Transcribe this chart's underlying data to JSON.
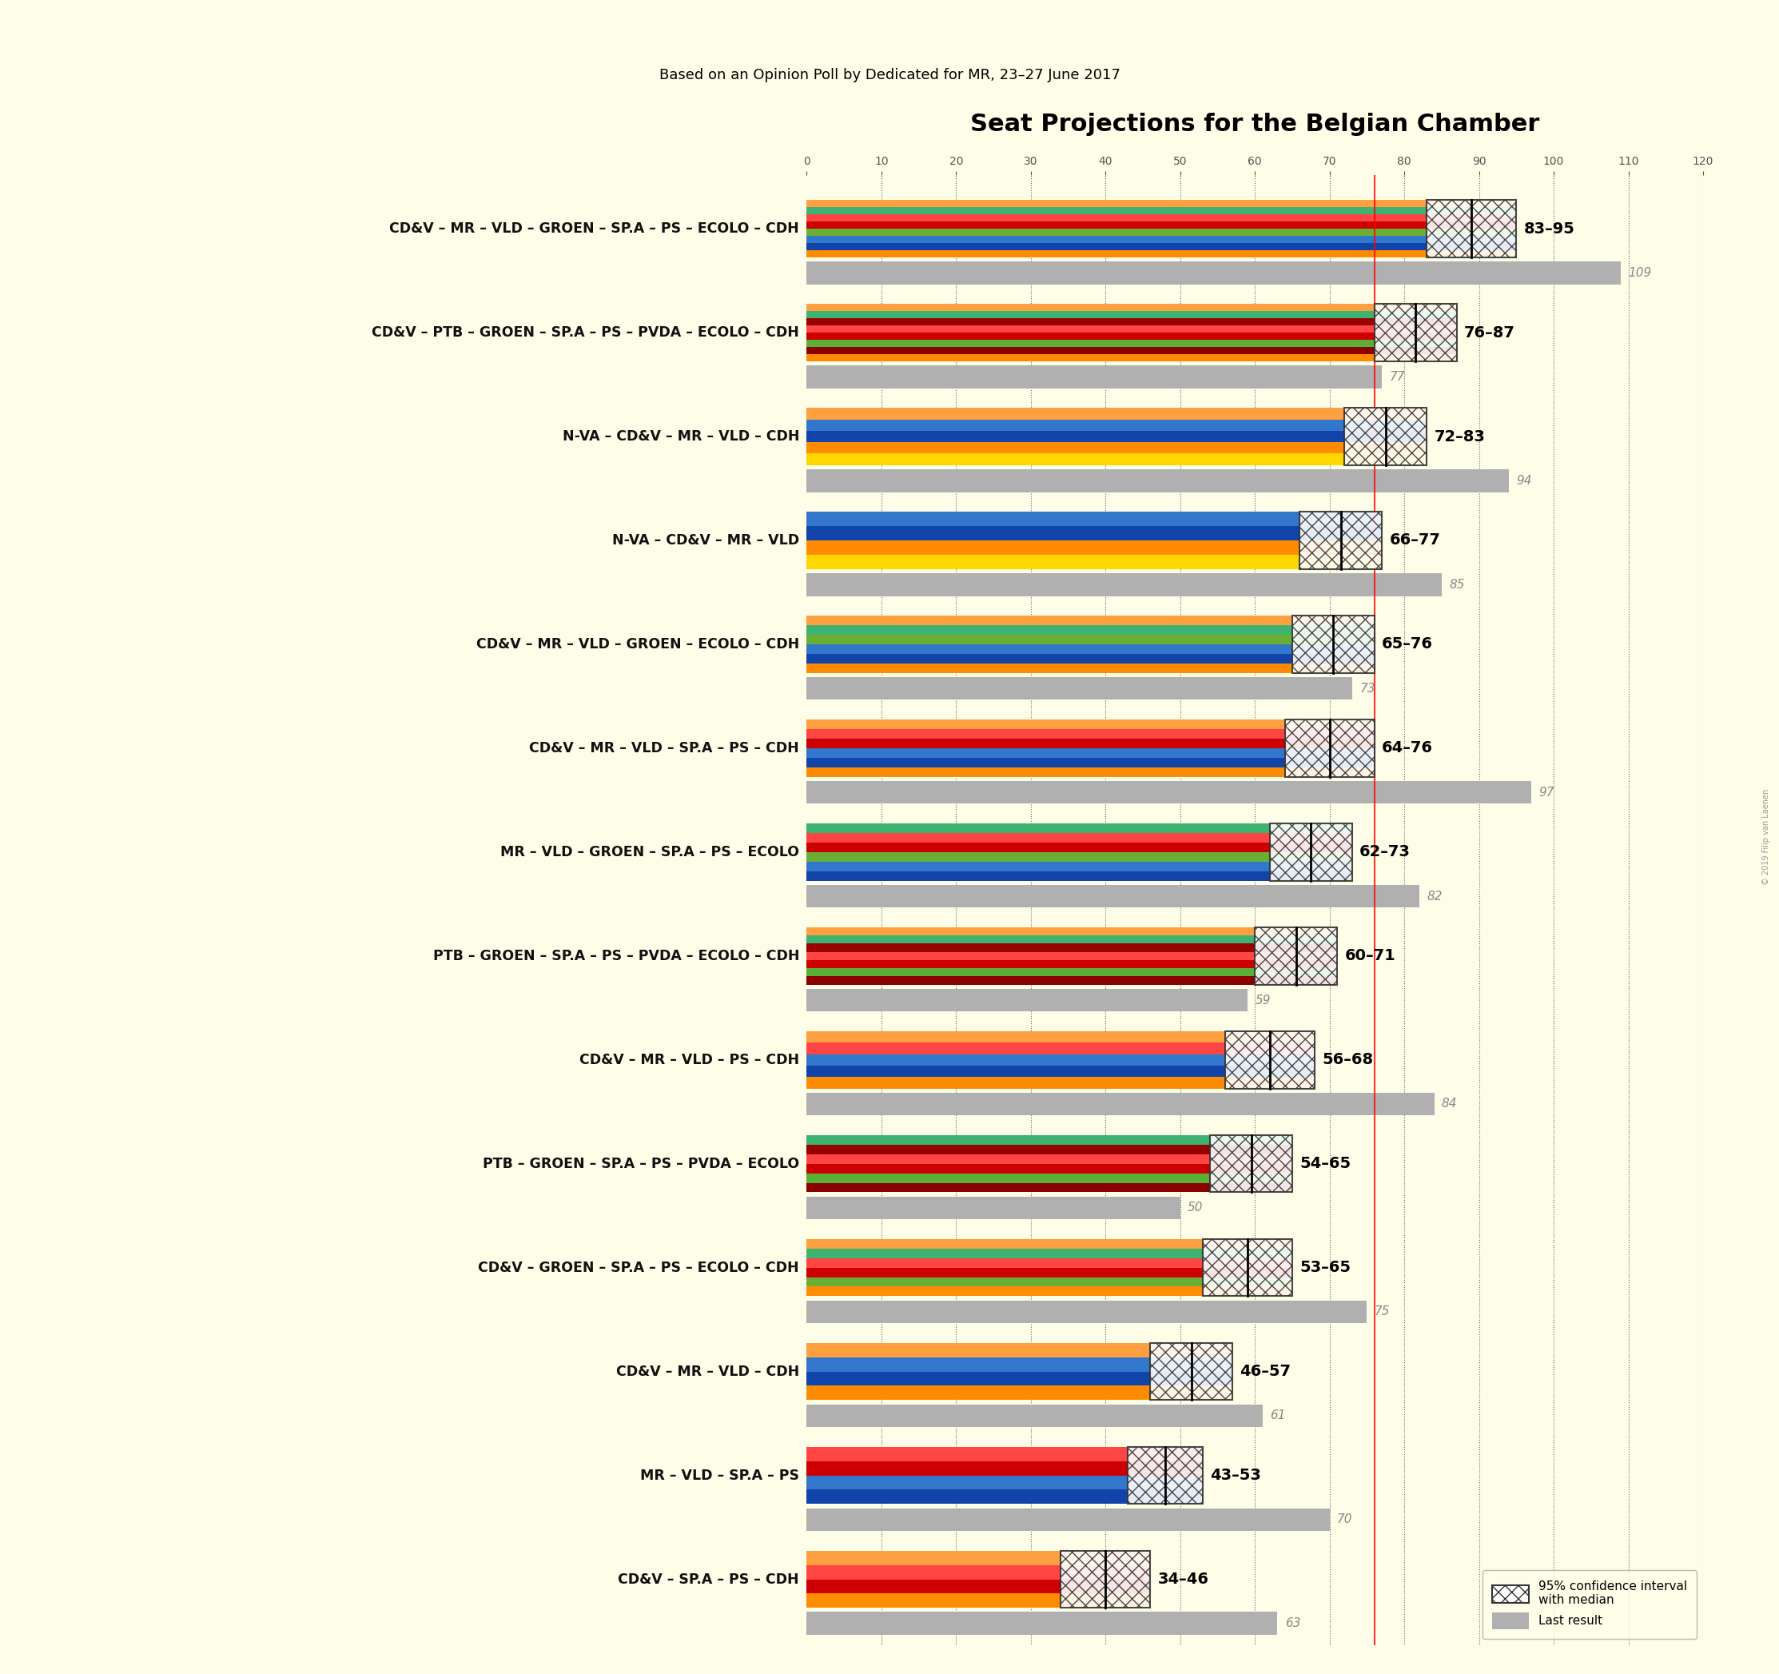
{
  "title": "Seat Projections for the Belgian Chamber",
  "subtitle": "Based on an Opinion Poll by Dedicated for MR, 23–27 June 2017",
  "background_color": "#FDFDE8",
  "coalitions": [
    {
      "label": "CD&V – MR – VLD – GROEN – SP.A – PS – ECOLO – CDH",
      "low": 83,
      "high": 95,
      "last": 109
    },
    {
      "label": "CD&V – PTB – GROEN – SP.A – PS – PVDA – ECOLO – CDH",
      "low": 76,
      "high": 87,
      "last": 77
    },
    {
      "label": "N-VA – CD&V – MR – VLD – CDH",
      "low": 72,
      "high": 83,
      "last": 94
    },
    {
      "label": "N-VA – CD&V – MR – VLD",
      "low": 66,
      "high": 77,
      "last": 85
    },
    {
      "label": "CD&V – MR – VLD – GROEN – ECOLO – CDH",
      "low": 65,
      "high": 76,
      "last": 73
    },
    {
      "label": "CD&V – MR – VLD – SP.A – PS – CDH",
      "low": 64,
      "high": 76,
      "last": 97
    },
    {
      "label": "MR – VLD – GROEN – SP.A – PS – ECOLO",
      "low": 62,
      "high": 73,
      "last": 82
    },
    {
      "label": "PTB – GROEN – SP.A – PS – PVDA – ECOLO – CDH",
      "low": 60,
      "high": 71,
      "last": 59
    },
    {
      "label": "CD&V – MR – VLD – PS – CDH",
      "low": 56,
      "high": 68,
      "last": 84
    },
    {
      "label": "PTB – GROEN – SP.A – PS – PVDA – ECOLO",
      "low": 54,
      "high": 65,
      "last": 50
    },
    {
      "label": "CD&V – GROEN – SP.A – PS – ECOLO – CDH",
      "low": 53,
      "high": 65,
      "last": 75
    },
    {
      "label": "CD&V – MR – VLD – CDH",
      "low": 46,
      "high": 57,
      "last": 61
    },
    {
      "label": "MR – VLD – SP.A – PS",
      "low": 43,
      "high": 53,
      "last": 70
    },
    {
      "label": "CD&V – SP.A – PS – CDH",
      "low": 34,
      "high": 46,
      "last": 63
    }
  ],
  "party_colors_ordered": {
    "CD&V – MR – VLD – GROEN – SP.A – PS – ECOLO – CDH": [
      "#FF8C00",
      "#1144AA",
      "#3377CC",
      "#6AAF35",
      "#CC0000",
      "#FF4444",
      "#3CB371",
      "#FFA040"
    ],
    "CD&V – PTB – GROEN – SP.A – PS – PVDA – ECOLO – CDH": [
      "#FF8C00",
      "#8B0000",
      "#5AAF35",
      "#CC0000",
      "#FF4444",
      "#990000",
      "#3CB371",
      "#FFA040"
    ],
    "N-VA – CD&V – MR – VLD – CDH": [
      "#FFD700",
      "#FF8C00",
      "#1144AA",
      "#3377CC",
      "#FFA040"
    ],
    "N-VA – CD&V – MR – VLD": [
      "#FFD700",
      "#FF8C00",
      "#1144AA",
      "#3377CC"
    ],
    "CD&V – MR – VLD – GROEN – ECOLO – CDH": [
      "#FF8C00",
      "#1144AA",
      "#3377CC",
      "#6AAF35",
      "#3CB371",
      "#FFA040"
    ],
    "CD&V – MR – VLD – SP.A – PS – CDH": [
      "#FF8C00",
      "#1144AA",
      "#3377CC",
      "#CC0000",
      "#FF4444",
      "#FFA040"
    ],
    "MR – VLD – GROEN – SP.A – PS – ECOLO": [
      "#1144AA",
      "#3377CC",
      "#6AAF35",
      "#CC0000",
      "#FF4444",
      "#3CB371"
    ],
    "PTB – GROEN – SP.A – PS – PVDA – ECOLO – CDH": [
      "#8B0000",
      "#5AAF35",
      "#CC0000",
      "#FF4444",
      "#990000",
      "#3CB371",
      "#FFA040"
    ],
    "CD&V – MR – VLD – PS – CDH": [
      "#FF8C00",
      "#1144AA",
      "#3377CC",
      "#FF4444",
      "#FFA040"
    ],
    "PTB – GROEN – SP.A – PS – PVDA – ECOLO": [
      "#8B0000",
      "#5AAF35",
      "#CC0000",
      "#FF4444",
      "#990000",
      "#3CB371"
    ],
    "CD&V – GROEN – SP.A – PS – ECOLO – CDH": [
      "#FF8C00",
      "#6AAF35",
      "#CC0000",
      "#FF4444",
      "#3CB371",
      "#FFA040"
    ],
    "CD&V – MR – VLD – CDH": [
      "#FF8C00",
      "#1144AA",
      "#3377CC",
      "#FFA040"
    ],
    "MR – VLD – SP.A – PS": [
      "#1144AA",
      "#3377CC",
      "#CC0000",
      "#FF4444"
    ],
    "CD&V – SP.A – PS – CDH": [
      "#FF8C00",
      "#CC0000",
      "#FF4444",
      "#FFA040"
    ]
  },
  "x_max": 120,
  "majority_line": 76,
  "grid_step": 10,
  "copyright": "© 2019 Filip van Laenen"
}
